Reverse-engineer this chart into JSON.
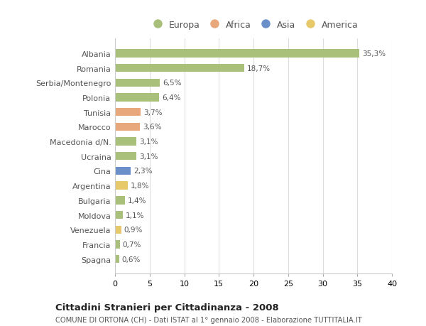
{
  "categories": [
    "Albania",
    "Romania",
    "Serbia/Montenegro",
    "Polonia",
    "Tunisia",
    "Marocco",
    "Macedonia d/N.",
    "Ucraina",
    "Cina",
    "Argentina",
    "Bulgaria",
    "Moldova",
    "Venezuela",
    "Francia",
    "Spagna"
  ],
  "values": [
    35.3,
    18.7,
    6.5,
    6.4,
    3.7,
    3.6,
    3.1,
    3.1,
    2.3,
    1.8,
    1.4,
    1.1,
    0.9,
    0.7,
    0.6
  ],
  "labels": [
    "35,3%",
    "18,7%",
    "6,5%",
    "6,4%",
    "3,7%",
    "3,6%",
    "3,1%",
    "3,1%",
    "2,3%",
    "1,8%",
    "1,4%",
    "1,1%",
    "0,9%",
    "0,7%",
    "0,6%"
  ],
  "regions": [
    "Europa",
    "Europa",
    "Europa",
    "Europa",
    "Africa",
    "Africa",
    "Europa",
    "Europa",
    "Asia",
    "America",
    "Europa",
    "Europa",
    "America",
    "Europa",
    "Europa"
  ],
  "colors": {
    "Europa": "#a8c07a",
    "Africa": "#e8a87c",
    "Asia": "#6b8fc9",
    "America": "#e8c96a"
  },
  "legend_order": [
    "Europa",
    "Africa",
    "Asia",
    "America"
  ],
  "legend_colors": [
    "#a8c07a",
    "#e8a87c",
    "#6b8fc9",
    "#e8c96a"
  ],
  "title_main": "Cittadini Stranieri per Cittadinanza - 2008",
  "title_sub": "COMUNE DI ORTONA (CH) - Dati ISTAT al 1° gennaio 2008 - Elaborazione TUTTITALIA.IT",
  "xlim": [
    0,
    40
  ],
  "xticks": [
    0,
    5,
    10,
    15,
    20,
    25,
    30,
    35,
    40
  ],
  "background_color": "#ffffff",
  "plot_bg_color": "#ffffff",
  "grid_color": "#dddddd",
  "bar_height": 0.55,
  "figsize": [
    6.0,
    4.6
  ],
  "dpi": 100
}
